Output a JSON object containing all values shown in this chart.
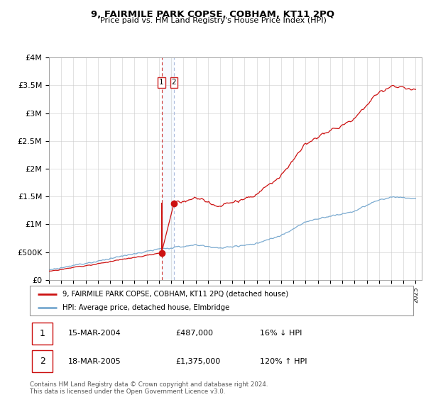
{
  "title": "9, FAIRMILE PARK COPSE, COBHAM, KT11 2PQ",
  "subtitle": "Price paid vs. HM Land Registry's House Price Index (HPI)",
  "transactions": [
    {
      "num": "1",
      "date": "15-MAR-2004",
      "price": 487000,
      "pct": "16%",
      "dir": "↓"
    },
    {
      "num": "2",
      "date": "18-MAR-2005",
      "price": 1375000,
      "pct": "120%",
      "dir": "↑"
    }
  ],
  "sale_dates_decimal": [
    2004.21,
    2005.22
  ],
  "sale_prices": [
    487000,
    1375000
  ],
  "hpi_line_color": "#7aaad0",
  "price_line_color": "#cc1111",
  "marker_color": "#cc1111",
  "dashed_line1_color": "#cc3333",
  "dashed_line2_color": "#aabbdd",
  "shade_color": "#ddeeff",
  "legend_label_price": "9, FAIRMILE PARK COPSE, COBHAM, KT11 2PQ (detached house)",
  "legend_label_hpi": "HPI: Average price, detached house, Elmbridge",
  "footer": "Contains HM Land Registry data © Crown copyright and database right 2024.\nThis data is licensed under the Open Government Licence v3.0.",
  "xmin": 1995.0,
  "xmax": 2025.5,
  "ymin": 0,
  "ymax": 4000000,
  "yticks": [
    0,
    500000,
    1000000,
    1500000,
    2000000,
    2500000,
    3000000,
    3500000,
    4000000
  ],
  "ytick_labels": [
    "£0",
    "£500K",
    "£1M",
    "£1.5M",
    "£2M",
    "£2.5M",
    "£3M",
    "£3.5M",
    "£4M"
  ]
}
